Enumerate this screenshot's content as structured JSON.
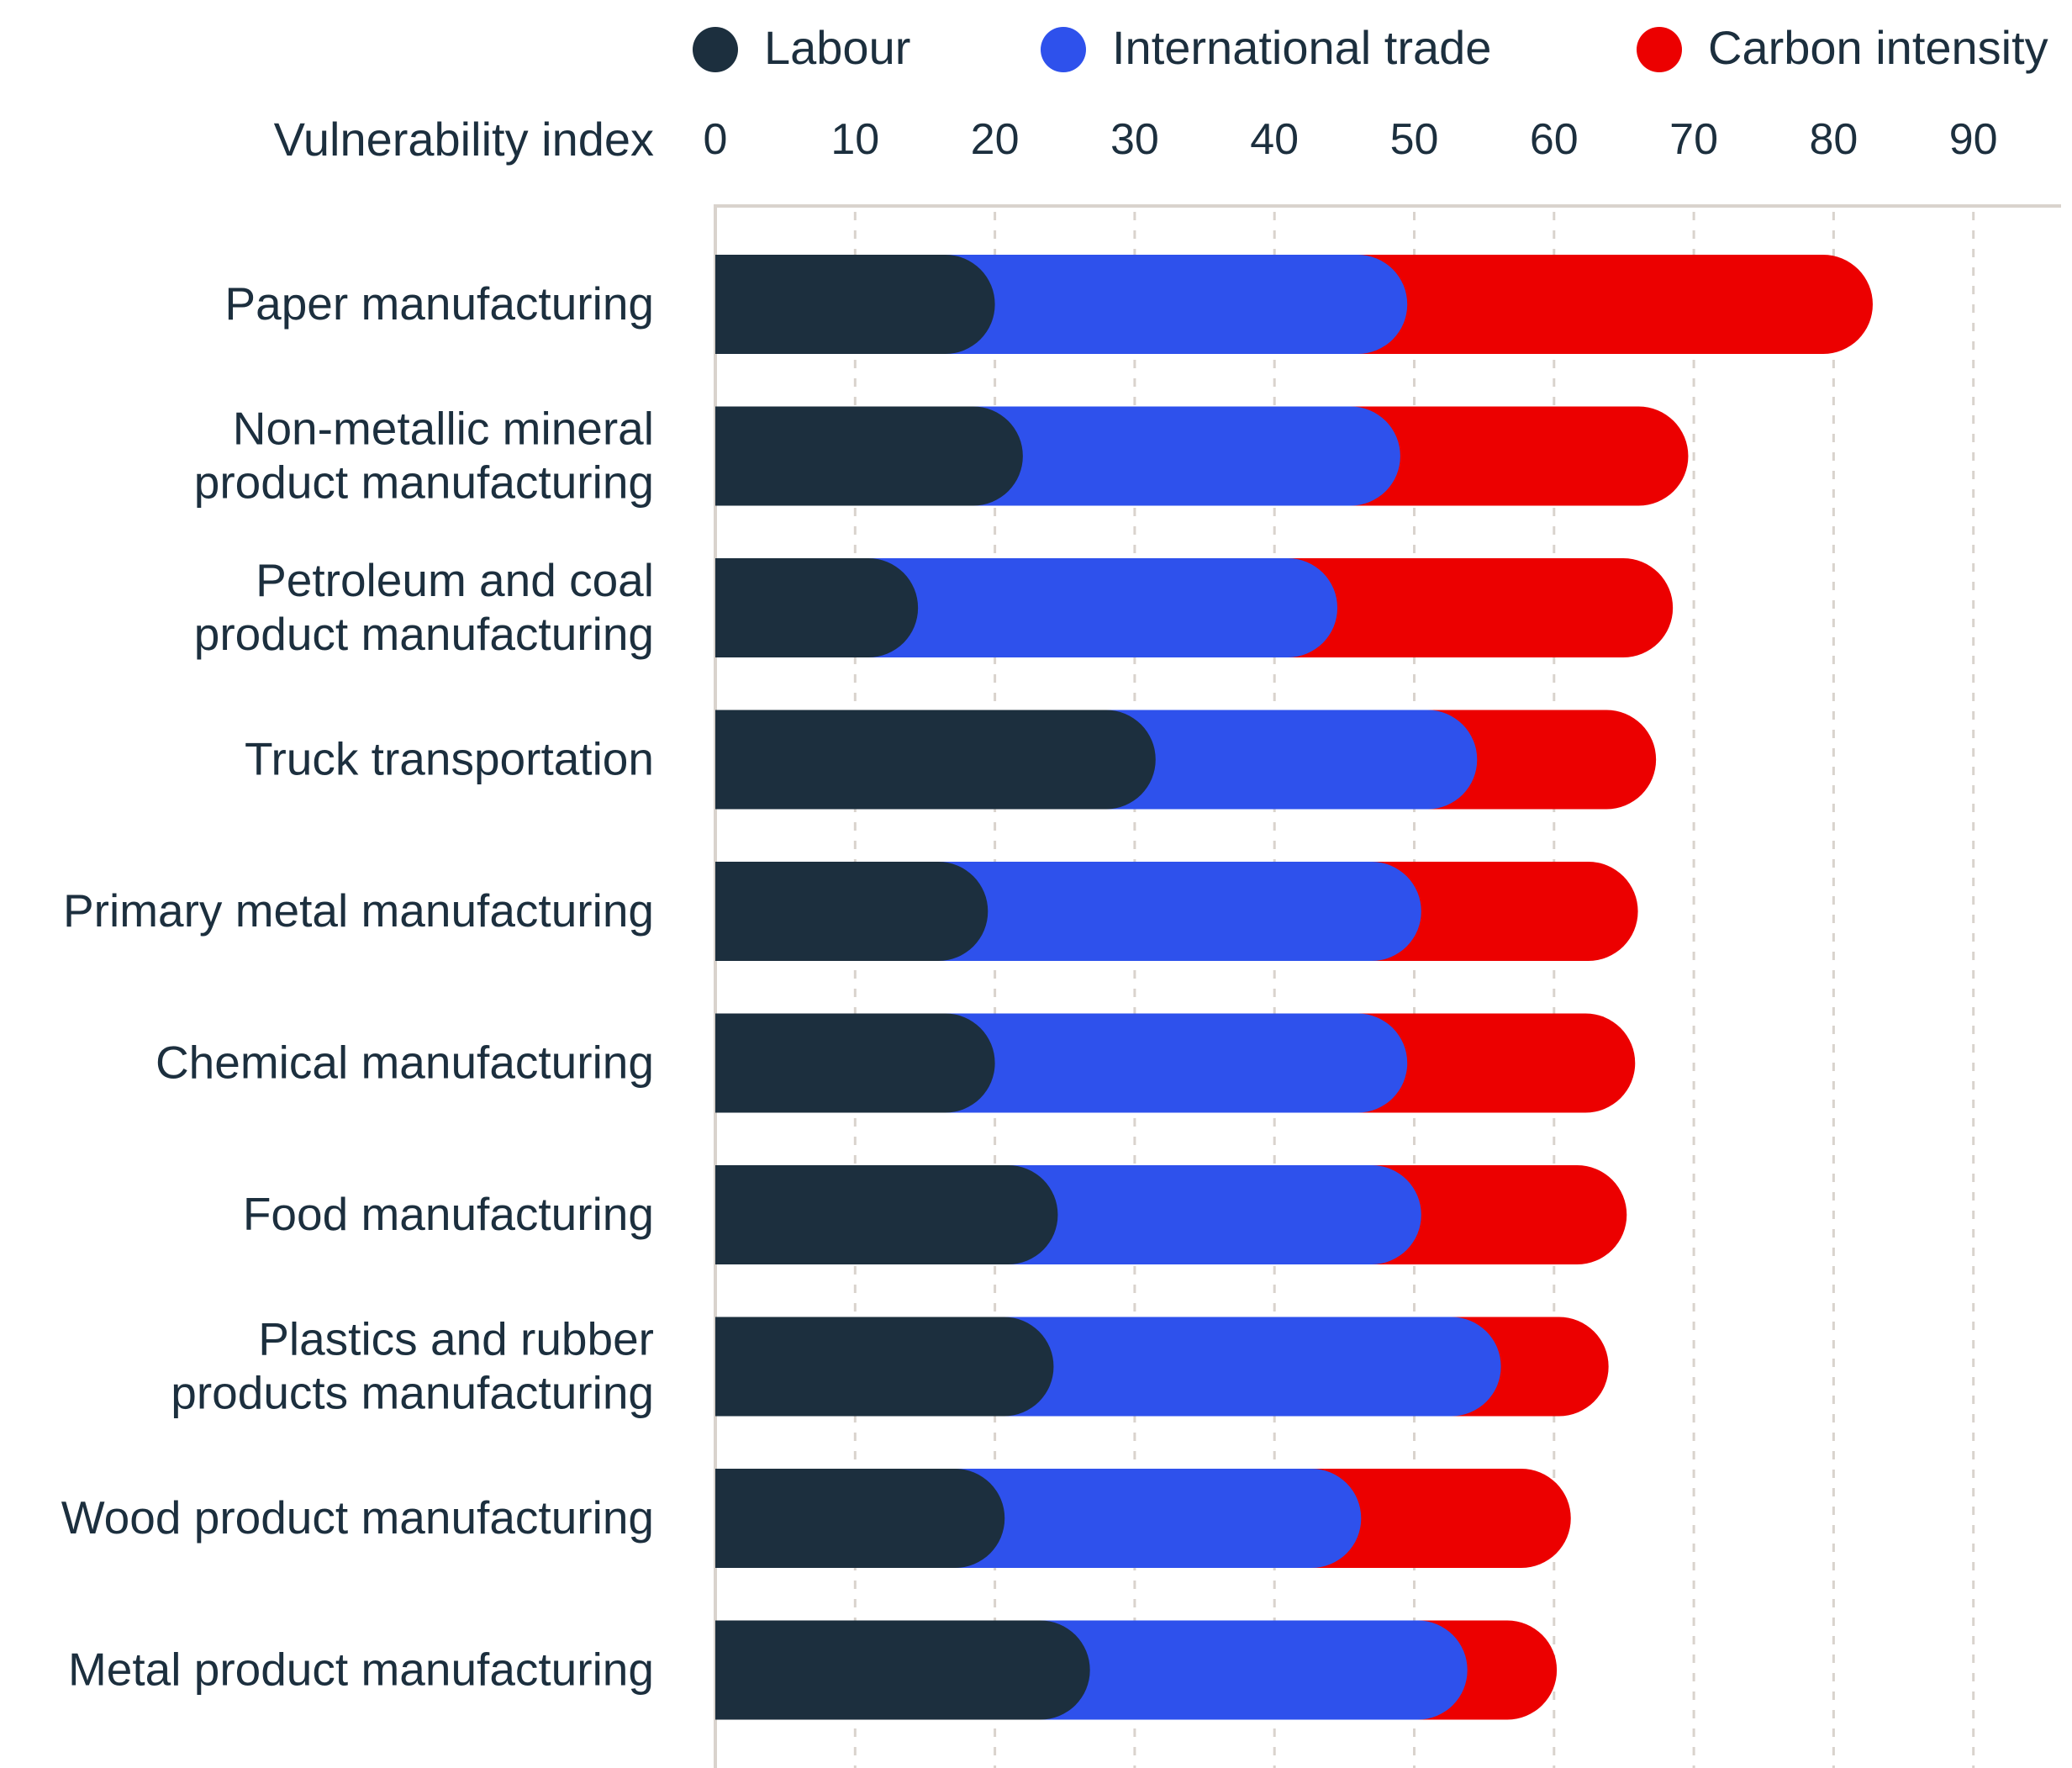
{
  "chart_data": {
    "type": "bar",
    "orientation": "horizontal",
    "stacked": true,
    "title": "",
    "xlabel": "Vulnerability index",
    "ylabel": "",
    "xlim": [
      0,
      96
    ],
    "x_ticks": [
      0,
      10,
      20,
      30,
      40,
      50,
      60,
      70,
      80,
      90
    ],
    "grid": true,
    "legend_position": "top",
    "categories": [
      [
        "Paper manufacturing"
      ],
      [
        "Non-metallic mineral",
        "product manufacturing"
      ],
      [
        "Petroleum and coal",
        "product manufacturing"
      ],
      [
        "Truck transportation"
      ],
      [
        "Primary metal manufacturing"
      ],
      [
        "Chemical manufacturing"
      ],
      [
        "Food manufacturing"
      ],
      [
        "Plastics and rubber",
        "products manufacturing"
      ],
      [
        "Wood product manufacturing"
      ],
      [
        "Metal product manufacturing"
      ]
    ],
    "series": [
      {
        "name": "Labour",
        "color": "#1c2f3e",
        "values": [
          20,
          22,
          14.5,
          31.5,
          19.5,
          20,
          24.5,
          24.2,
          20.7,
          26.8
        ]
      },
      {
        "name": "International trade",
        "color": "#2e51ec",
        "values": [
          29.5,
          27,
          30,
          23,
          31,
          29.5,
          26,
          32,
          25.5,
          27
        ]
      },
      {
        "name": "Carbon intensity",
        "color": "#ec0000",
        "values": [
          33.3,
          20.6,
          24,
          12.8,
          15.5,
          16.3,
          14.7,
          7.7,
          15,
          6.4
        ]
      }
    ]
  }
}
